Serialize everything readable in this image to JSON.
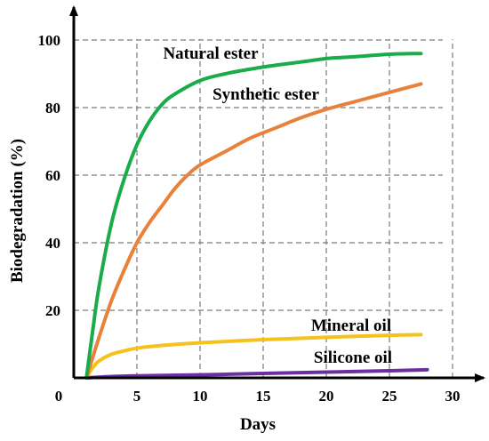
{
  "chart_data": {
    "type": "line",
    "title": "",
    "xlabel": "Days",
    "ylabel": "Biodegradation (%)",
    "xlim": [
      0,
      30
    ],
    "ylim": [
      0,
      100
    ],
    "x_ticks": [
      0,
      5,
      10,
      15,
      20,
      25,
      30
    ],
    "y_ticks": [
      20,
      40,
      60,
      80,
      100
    ],
    "grid": true,
    "series": [
      {
        "name": "Natural ester",
        "color": "#1aab4b",
        "x": [
          1,
          1.5,
          2,
          3,
          4,
          5,
          6,
          7,
          8,
          10,
          12,
          15,
          18,
          20,
          22,
          25,
          27.5
        ],
        "y": [
          0,
          14,
          27,
          46,
          59,
          69,
          76,
          81,
          84,
          88,
          90,
          92,
          93.5,
          94.5,
          95,
          95.8,
          96
        ]
      },
      {
        "name": "Synthetic ester",
        "color": "#e8823a",
        "x": [
          1,
          2,
          3,
          4,
          5,
          6,
          7,
          8,
          9,
          10,
          12,
          14,
          16,
          18,
          20,
          22,
          24,
          26,
          27.5
        ],
        "y": [
          0,
          12,
          23,
          32,
          40,
          46,
          51,
          56,
          60,
          63,
          67,
          71,
          74,
          77,
          79.5,
          81.5,
          83.5,
          85.5,
          87
        ]
      },
      {
        "name": "Mineral oil",
        "color": "#f5c21a",
        "x": [
          1,
          1.5,
          2,
          3,
          4,
          5,
          7,
          10,
          15,
          20,
          25,
          27.5
        ],
        "y": [
          0,
          3,
          5,
          7,
          8,
          8.8,
          9.6,
          10.4,
          11.3,
          12,
          12.6,
          12.8
        ]
      },
      {
        "name": "Silicone oil",
        "color": "#6b2fa3",
        "x": [
          1,
          3,
          5,
          10,
          15,
          20,
          25,
          28
        ],
        "y": [
          0,
          0.4,
          0.6,
          0.9,
          1.3,
          1.7,
          2.1,
          2.4
        ]
      }
    ]
  }
}
